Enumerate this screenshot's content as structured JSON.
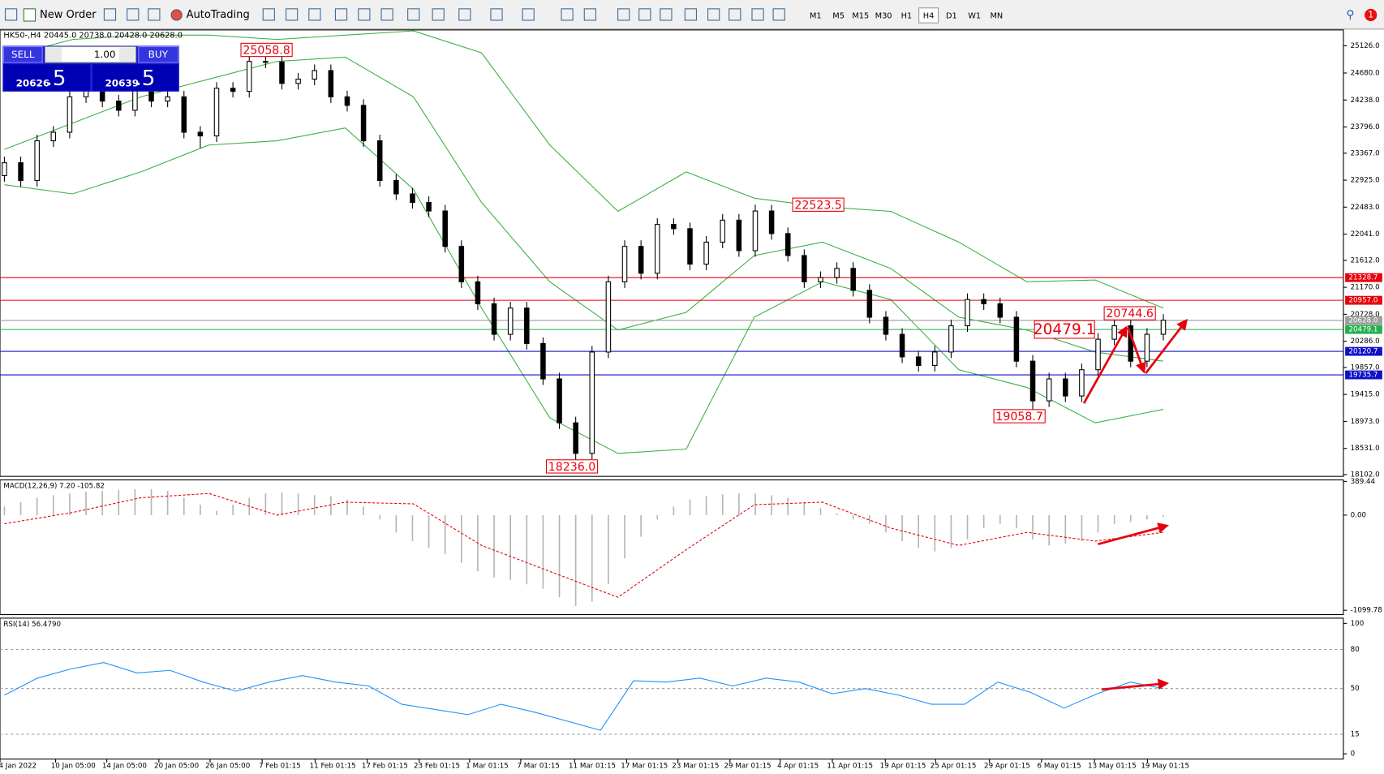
{
  "toolbar": {
    "new_order": "New Order",
    "autotrading": "AutoTrading",
    "timeframes": [
      "M1",
      "M5",
      "M15",
      "M30",
      "H1",
      "H4",
      "D1",
      "W1",
      "MN"
    ],
    "active_timeframe": "H4",
    "notifications": 1
  },
  "symbol_info": "HK50-,H4  20445.0 20738.0 20428.0 20628.0",
  "trade_panel": {
    "sell": "SELL",
    "lot": "1.00",
    "buy": "BUY",
    "sell_price": "20626",
    "sell_price_fraction": ".5",
    "buy_price": "20639",
    "buy_price_fraction": ".5"
  },
  "chart_data": [
    {
      "type": "candlestick",
      "open": [
        23000,
        23210,
        22920,
        23570,
        23710,
        24290,
        24580,
        24220,
        24070,
        24650,
        24220,
        24290,
        23710,
        23650,
        24430,
        24380,
        24870,
        24860,
        24510,
        24580,
        24720,
        24290,
        24150,
        23570,
        22920,
        22700,
        22560,
        22420,
        21840,
        21260,
        20900,
        20400,
        20830,
        20250,
        19670,
        18950,
        18450,
        20110,
        21260,
        21840,
        21400,
        22200,
        22130,
        21550,
        21910,
        22270,
        21770,
        22420,
        22050,
        21690,
        21260,
        21330,
        21480,
        21120,
        20680,
        20400,
        20030,
        19890,
        20110,
        20540,
        20970,
        20900,
        20680,
        19960,
        19310,
        19670,
        19390,
        19820,
        20320,
        20540,
        19960,
        20400
      ],
      "high": [
        23310,
        23310,
        23670,
        23810,
        24390,
        24680,
        24680,
        24320,
        24750,
        24750,
        24390,
        24390,
        23810,
        24530,
        24530,
        25058.8,
        24970,
        24960,
        24680,
        24820,
        24820,
        24390,
        24250,
        23670,
        23020,
        22800,
        22660,
        22520,
        21940,
        21360,
        21000,
        20930,
        20930,
        20350,
        19770,
        19050,
        20210,
        21360,
        21940,
        21940,
        22300,
        22300,
        22230,
        22010,
        22370,
        22370,
        22523.5,
        22520,
        22150,
        21790,
        21430,
        21580,
        21580,
        21220,
        20780,
        20500,
        20130,
        20210,
        20640,
        21070,
        21070,
        21000,
        20780,
        20060,
        19770,
        19770,
        19920,
        20420,
        20744.6,
        20640,
        20500,
        20730
      ],
      "low": [
        22900,
        22820,
        22820,
        23470,
        23610,
        24190,
        24120,
        23970,
        23970,
        24120,
        24120,
        23610,
        23450,
        23550,
        24280,
        24280,
        24760,
        24410,
        24410,
        24480,
        24190,
        24050,
        23470,
        22820,
        22600,
        22460,
        22320,
        21740,
        21160,
        20800,
        20300,
        20300,
        20150,
        19570,
        18850,
        18236,
        18350,
        20010,
        21160,
        21300,
        21300,
        22030,
        21450,
        21450,
        21810,
        21670,
        21670,
        21950,
        21590,
        21160,
        21160,
        21230,
        21020,
        20580,
        20300,
        19930,
        19790,
        19790,
        20010,
        20440,
        20800,
        20580,
        19860,
        19058.7,
        19210,
        19290,
        19290,
        19720,
        20220,
        19860,
        19860,
        20300
      ],
      "close": [
        23210,
        22920,
        23570,
        23710,
        24290,
        24580,
        24220,
        24070,
        24650,
        24220,
        24290,
        23710,
        23650,
        24430,
        24380,
        24870,
        24860,
        24510,
        24580,
        24720,
        24290,
        24150,
        23570,
        22920,
        22700,
        22560,
        22420,
        21840,
        21260,
        20900,
        20400,
        20830,
        20250,
        19670,
        18950,
        18450,
        20110,
        21260,
        21840,
        21400,
        22200,
        22130,
        21550,
        21910,
        22270,
        21770,
        22420,
        22050,
        21690,
        21260,
        21330,
        21480,
        21120,
        20680,
        20400,
        20030,
        19890,
        20110,
        20540,
        20970,
        20900,
        20680,
        19960,
        19310,
        19670,
        19390,
        19820,
        20320,
        20540,
        19960,
        20400,
        20630
      ],
      "bands": {
        "color": "#3cb043",
        "upper": [
          24940,
          25230,
          25300,
          25300,
          25230,
          25300,
          25370,
          25010,
          23500,
          22415,
          23060,
          22630,
          22490,
          22415,
          21910,
          21260,
          21290,
          20830
        ],
        "middle": [
          23430,
          23860,
          24290,
          24580,
          24870,
          24940,
          24290,
          22560,
          21260,
          20470,
          20760,
          21690,
          21910,
          21480,
          20680,
          20470,
          20110,
          19960
        ],
        "lower": [
          22850,
          22700,
          23060,
          23500,
          23570,
          23780,
          22775,
          20830,
          19030,
          18450,
          18520,
          20680,
          21260,
          20970,
          19820,
          19530,
          18950,
          19170
        ]
      },
      "ylim": [
        18073,
        25400
      ],
      "yticks": [
        {
          "value": 25126,
          "label": "25126.0"
        },
        {
          "value": 24680,
          "label": "24680.0"
        },
        {
          "value": 24238,
          "label": "24238.0"
        },
        {
          "value": 23796,
          "label": "23796.0"
        },
        {
          "value": 23367,
          "label": "23367.0"
        },
        {
          "value": 22925,
          "label": "22925.0"
        },
        {
          "value": 22483,
          "label": "22483.0"
        },
        {
          "value": 22041,
          "label": "22041.0"
        },
        {
          "value": 21612,
          "label": "21612.0"
        },
        {
          "value": 21170,
          "label": "21170.0"
        },
        {
          "value": 20728,
          "label": "20728.0"
        },
        {
          "value": 20286,
          "label": "20286.0"
        },
        {
          "value": 19857,
          "label": "19857.0"
        },
        {
          "value": 19415,
          "label": "19415.0"
        },
        {
          "value": 18973,
          "label": "18973.0"
        },
        {
          "value": 18531,
          "label": "18531.0"
        },
        {
          "value": 18102,
          "label": "18102.0"
        }
      ],
      "hlines": [
        {
          "value": 21328.7,
          "color": "#e8000b"
        },
        {
          "value": 20957,
          "label": "20957.0",
          "color": "#e8000b"
        },
        {
          "value": 20628,
          "label": "20628.0",
          "color": "#9e9e9e"
        },
        {
          "value": 20479.1,
          "color": "#22b14c"
        },
        {
          "value": 20120.7,
          "color": "#1010c8"
        },
        {
          "value": 19735.7,
          "color": "#1010c8"
        }
      ],
      "annotations": [
        {
          "value": 25058.8
        },
        {
          "value": 22523.5
        },
        {
          "value": 18236,
          "label": "18236.0"
        },
        {
          "value": 19058.7
        },
        {
          "value": 20744.6
        },
        {
          "value": 20479.1
        }
      ],
      "x_labels": [
        "4 Jan 2022",
        "10 Jan 05:00",
        "14 Jan 05:00",
        "20 Jan 05:00",
        "26 Jan 05:00",
        "7 Feb 01:15",
        "11 Feb 01:15",
        "17 Feb 01:15",
        "23 Feb 01:15",
        "1 Mar 01:15",
        "7 Mar 01:15",
        "11 Mar 01:15",
        "17 Mar 01:15",
        "23 Mar 01:15",
        "29 Mar 01:15",
        "4 Apr 01:15",
        "11 Apr 01:15",
        "19 Apr 01:15",
        "25 Apr 01:15",
        "29 Apr 01:15",
        "6 May 01:15",
        "13 May 01:15",
        "19 May 01:15"
      ]
    },
    {
      "type": "macd",
      "title": "MACD(12,26,9) 7.20 -105.82",
      "color": "#b4b4b4",
      "signal_color": "#e8000b",
      "values": [
        100,
        150,
        200,
        230,
        250,
        270,
        280,
        290,
        300,
        300,
        280,
        200,
        120,
        50,
        120,
        200,
        250,
        260,
        250,
        230,
        220,
        180,
        100,
        -50,
        -200,
        -300,
        -380,
        -450,
        -550,
        -650,
        -720,
        -750,
        -800,
        -850,
        -950,
        -1050,
        -1000,
        -800,
        -500,
        -250,
        -50,
        100,
        180,
        220,
        240,
        250,
        250,
        230,
        200,
        150,
        80,
        20,
        -50,
        -100,
        -200,
        -300,
        -380,
        -420,
        -380,
        -280,
        -150,
        -100,
        -150,
        -280,
        -350,
        -330,
        -300,
        -200,
        -100,
        -80,
        -50,
        -20
      ],
      "signal": [
        -100,
        30,
        200,
        250,
        0,
        150,
        130,
        -350,
        -650,
        -950,
        -400,
        120,
        150,
        -150,
        -350,
        -200,
        -300,
        -200
      ],
      "ylim": [
        -1150,
        407
      ],
      "yticks": [
        389.44,
        {
          "value": 0,
          "label": "0.00"
        },
        -1099.78
      ]
    },
    {
      "type": "rsi",
      "title": "RSI(14) 56.4790",
      "color": "#1e90ff",
      "values": [
        45,
        58,
        65,
        70,
        62,
        64,
        55,
        48,
        55,
        60,
        55,
        52,
        38,
        34,
        30,
        38,
        32,
        25,
        18,
        56,
        55,
        58,
        52,
        58,
        55,
        46,
        50,
        45,
        38,
        38,
        55,
        47,
        35,
        46,
        55,
        50
      ],
      "ylim": [
        -4,
        104
      ],
      "yticks": [
        100,
        80,
        50,
        15,
        0
      ]
    }
  ]
}
